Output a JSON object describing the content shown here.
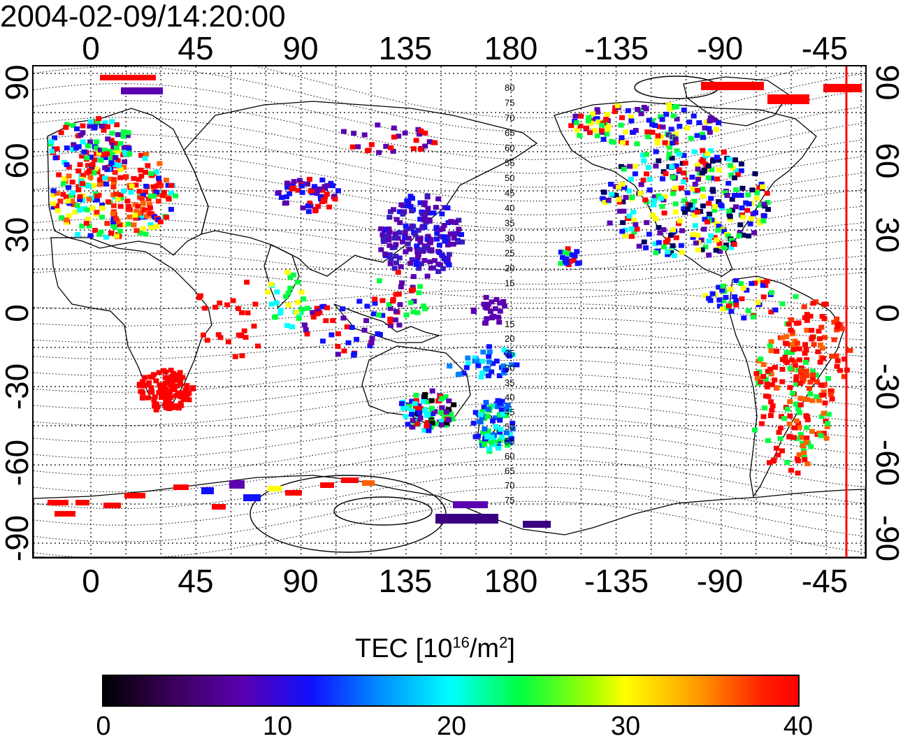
{
  "timestamp": "2004-02-09/14:20:00",
  "map": {
    "type": "TEC world map",
    "lon_ticks_top": [
      "0",
      "45",
      "90",
      "135",
      "180",
      "-135",
      "-90",
      "-45"
    ],
    "lon_ticks_bottom": [
      "0",
      "45",
      "90",
      "135",
      "180",
      "-135",
      "-90",
      "-45"
    ],
    "lat_ticks_left": [
      "90",
      "60",
      "30",
      "0",
      "-30",
      "-60",
      "-90"
    ],
    "lat_ticks_right": [
      "90",
      "60",
      "30",
      "0",
      "-30",
      "-60",
      "-90"
    ],
    "contour_labels_north": [
      "80",
      "75",
      "70",
      "65",
      "60",
      "55",
      "50",
      "45",
      "40",
      "35",
      "30",
      "25",
      "20",
      "15"
    ],
    "contour_labels_south": [
      "15",
      "20",
      "25",
      "30",
      "35",
      "40",
      "45",
      "50",
      "55",
      "60",
      "65",
      "70",
      "75"
    ],
    "terminator_line_color": "#ff0000"
  },
  "colorbar": {
    "title_prefix": "TEC  [10",
    "title_exp1": "16",
    "title_mid": "/m",
    "title_exp2": "2",
    "title_suffix": "]",
    "ticks": [
      "0",
      "10",
      "20",
      "30",
      "40"
    ],
    "range": [
      0,
      40
    ],
    "colormap": [
      "#000000",
      "#5a00b0",
      "#1010ff",
      "#00ffff",
      "#00ff40",
      "#ffff00",
      "#ff0000"
    ]
  }
}
